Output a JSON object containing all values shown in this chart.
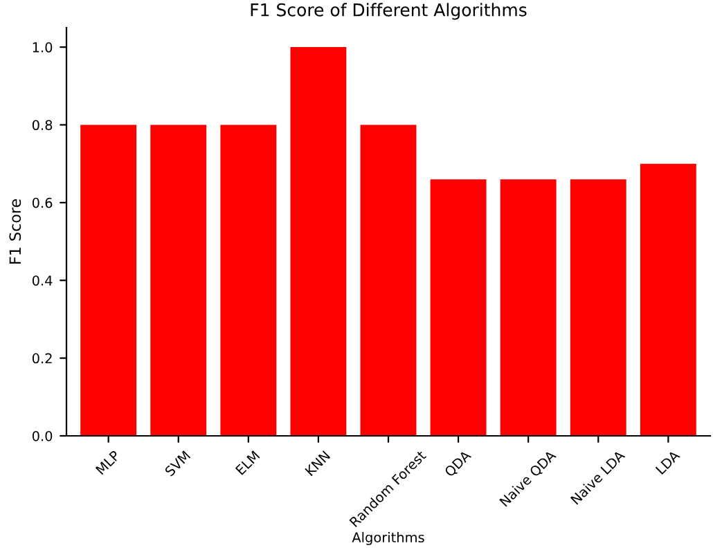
{
  "chart_data": {
    "type": "bar",
    "title": "F1 Score of Different Algorithms",
    "xlabel": "Algorithms",
    "ylabel": "F1 Score",
    "categories": [
      "MLP",
      "SVM",
      "ELM",
      "KNN",
      "Random Forest",
      "QDA",
      "Naive QDA",
      "Naive LDA",
      "LDA"
    ],
    "values": [
      0.8,
      0.8,
      0.8,
      1.0,
      0.8,
      0.66,
      0.66,
      0.66,
      0.7
    ],
    "color": "#ff0000",
    "ylim": [
      0,
      1.05
    ],
    "yticks": [
      {
        "value": 0,
        "label": "0.0"
      },
      0.2,
      0.4,
      0.6,
      0.8,
      {
        "value": 1,
        "label": "1.0"
      }
    ],
    "grid": false,
    "legend": false
  }
}
